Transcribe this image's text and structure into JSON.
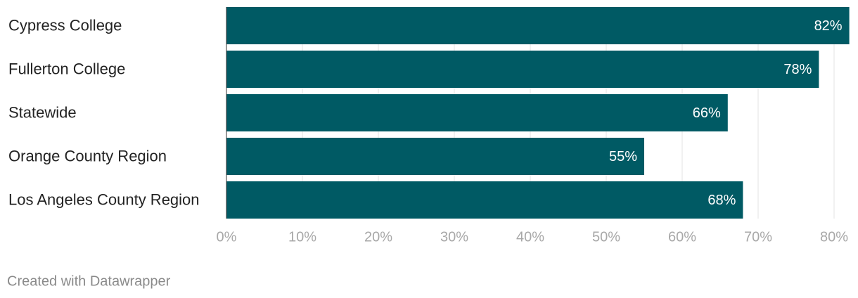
{
  "chart_data": {
    "type": "bar",
    "orientation": "horizontal",
    "categories": [
      "Cypress College",
      "Fullerton College",
      "Statewide",
      "Orange County Region",
      "Los Angeles County Region"
    ],
    "values": [
      82,
      78,
      66,
      55,
      68
    ],
    "value_labels": [
      "82%",
      "78%",
      "66%",
      "55%",
      "68%"
    ],
    "color": "#005a64",
    "xlim": [
      0,
      82
    ],
    "xticks": [
      {
        "value": 0,
        "label": "0%"
      },
      {
        "value": 10,
        "label": "10%"
      },
      {
        "value": 20,
        "label": "20%"
      },
      {
        "value": 30,
        "label": "30%"
      },
      {
        "value": 40,
        "label": "40%"
      },
      {
        "value": 50,
        "label": "50%"
      },
      {
        "value": 60,
        "label": "60%"
      },
      {
        "value": 70,
        "label": "70%"
      },
      {
        "value": 80,
        "label": "80%"
      }
    ],
    "grid": true,
    "source": "Created with Datawrapper"
  }
}
